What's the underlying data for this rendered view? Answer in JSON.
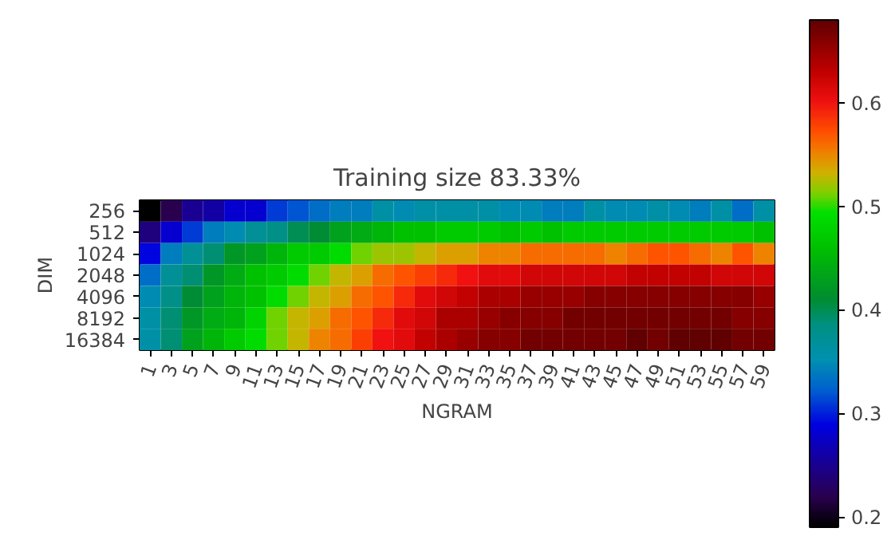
{
  "chart_data": {
    "type": "heatmap",
    "title": "Training size 83.33%",
    "xlabel": "NGRAM",
    "ylabel": "DIM",
    "categories": [
      "1",
      "3",
      "5",
      "7",
      "9",
      "11",
      "13",
      "15",
      "17",
      "19",
      "21",
      "23",
      "25",
      "27",
      "29",
      "31",
      "33",
      "35",
      "37",
      "39",
      "41",
      "43",
      "45",
      "47",
      "49",
      "51",
      "53",
      "55",
      "57",
      "59"
    ],
    "y_categories": [
      "256",
      "512",
      "1024",
      "2048",
      "4096",
      "8192",
      "16384"
    ],
    "cells": [
      [
        0.19,
        0.22,
        0.25,
        0.26,
        0.28,
        0.28,
        0.31,
        0.32,
        0.33,
        0.34,
        0.34,
        0.36,
        0.35,
        0.36,
        0.36,
        0.36,
        0.36,
        0.35,
        0.35,
        0.34,
        0.34,
        0.36,
        0.35,
        0.35,
        0.36,
        0.35,
        0.34,
        0.36,
        0.33,
        0.36
      ],
      [
        0.24,
        0.28,
        0.31,
        0.34,
        0.35,
        0.37,
        0.38,
        0.4,
        0.41,
        0.43,
        0.44,
        0.45,
        0.46,
        0.46,
        0.47,
        0.47,
        0.47,
        0.46,
        0.47,
        0.46,
        0.47,
        0.47,
        0.47,
        0.47,
        0.47,
        0.47,
        0.47,
        0.47,
        0.47,
        0.46
      ],
      [
        0.29,
        0.34,
        0.37,
        0.39,
        0.42,
        0.43,
        0.45,
        0.47,
        0.47,
        0.49,
        0.51,
        0.52,
        0.52,
        0.53,
        0.54,
        0.54,
        0.55,
        0.55,
        0.56,
        0.56,
        0.56,
        0.56,
        0.55,
        0.56,
        0.57,
        0.57,
        0.56,
        0.55,
        0.57,
        0.55
      ],
      [
        0.33,
        0.37,
        0.39,
        0.42,
        0.44,
        0.46,
        0.47,
        0.49,
        0.51,
        0.53,
        0.54,
        0.56,
        0.57,
        0.58,
        0.59,
        0.6,
        0.61,
        0.61,
        0.62,
        0.62,
        0.62,
        0.62,
        0.62,
        0.63,
        0.63,
        0.63,
        0.63,
        0.62,
        0.62,
        0.62
      ],
      [
        0.35,
        0.38,
        0.41,
        0.43,
        0.45,
        0.46,
        0.49,
        0.51,
        0.53,
        0.54,
        0.56,
        0.57,
        0.59,
        0.61,
        0.62,
        0.63,
        0.64,
        0.64,
        0.65,
        0.65,
        0.65,
        0.66,
        0.66,
        0.66,
        0.66,
        0.66,
        0.66,
        0.66,
        0.66,
        0.65
      ],
      [
        0.36,
        0.39,
        0.42,
        0.44,
        0.45,
        0.48,
        0.51,
        0.53,
        0.54,
        0.56,
        0.57,
        0.59,
        0.61,
        0.62,
        0.64,
        0.64,
        0.65,
        0.66,
        0.66,
        0.66,
        0.67,
        0.67,
        0.67,
        0.67,
        0.67,
        0.67,
        0.67,
        0.67,
        0.66,
        0.66
      ],
      [
        0.36,
        0.39,
        0.43,
        0.45,
        0.47,
        0.49,
        0.51,
        0.53,
        0.55,
        0.56,
        0.58,
        0.6,
        0.61,
        0.63,
        0.64,
        0.65,
        0.66,
        0.66,
        0.67,
        0.67,
        0.67,
        0.67,
        0.67,
        0.68,
        0.67,
        0.68,
        0.68,
        0.68,
        0.67,
        0.67
      ]
    ],
    "clim": [
      0.19,
      0.68
    ],
    "cticks": [
      0.2,
      0.3,
      0.4,
      0.5,
      0.6
    ]
  }
}
